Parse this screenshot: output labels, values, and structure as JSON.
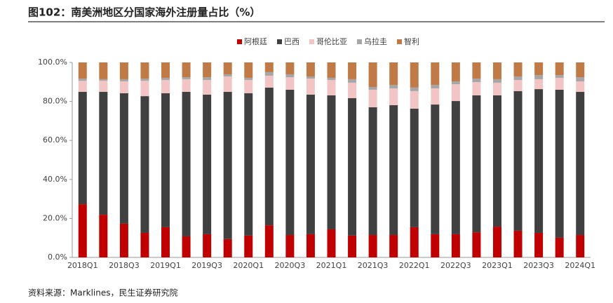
{
  "chart_data": {
    "type": "stacked_bar",
    "title": "图102：南美洲地区分国家海外注册量占比（%）",
    "source": "资料来源：Marklines，民生证券研究院",
    "categories": [
      "2018Q1",
      null,
      "2018Q3",
      null,
      "2019Q1",
      null,
      "2019Q3",
      null,
      "2020Q1",
      null,
      "2020Q3",
      null,
      "2021Q1",
      null,
      "2021Q3",
      null,
      "2022Q1",
      null,
      "2022Q3",
      null,
      "2023Q1",
      null,
      "2023Q3",
      null,
      "2024Q1"
    ],
    "series": [
      {
        "name": "阿根廷",
        "color": "#c00000",
        "values": [
          27.3,
          21.9,
          17.3,
          12.6,
          15.5,
          10.8,
          11.9,
          9.4,
          11.2,
          16.5,
          11.5,
          11.9,
          14.4,
          11.2,
          11.5,
          11.5,
          15.5,
          11.9,
          11.9,
          12.9,
          15.8,
          13.7,
          12.6,
          10.1,
          11.5
        ]
      },
      {
        "name": "巴西",
        "color": "#404040",
        "values": [
          57.6,
          63.0,
          66.9,
          70.1,
          68.7,
          74.1,
          71.6,
          75.5,
          73.0,
          70.6,
          74.5,
          71.6,
          68.7,
          70.5,
          65.5,
          66.6,
          60.8,
          66.5,
          68.3,
          70.2,
          67.3,
          71.6,
          73.7,
          75.9,
          73.4
        ]
      },
      {
        "name": "哥伦比亚",
        "color": "#f2c4c4",
        "values": [
          5.7,
          5.7,
          6.1,
          7.9,
          6.8,
          6.5,
          7.5,
          7.9,
          6.8,
          6.1,
          6.4,
          8.2,
          7.9,
          7.9,
          9.0,
          8.6,
          9.0,
          8.3,
          8.6,
          6.8,
          6.5,
          5.7,
          5.1,
          6.1,
          5.4
        ]
      },
      {
        "name": "乌拉圭",
        "color": "#a6a6a6",
        "values": [
          1.1,
          0.8,
          1.1,
          1.1,
          1.1,
          1.0,
          1.4,
          1.1,
          1.1,
          1.8,
          1.5,
          1.1,
          1.1,
          1.8,
          1.4,
          1.8,
          1.8,
          1.8,
          1.5,
          1.8,
          1.8,
          1.8,
          2.1,
          1.4,
          2.1
        ]
      },
      {
        "name": "智利",
        "color": "#c07a45",
        "values": [
          8.3,
          8.6,
          8.6,
          8.3,
          7.9,
          7.6,
          7.6,
          6.1,
          7.9,
          5.0,
          6.1,
          7.2,
          7.9,
          8.6,
          12.6,
          11.5,
          12.9,
          11.5,
          9.7,
          8.3,
          8.6,
          7.2,
          6.5,
          6.5,
          7.6
        ]
      }
    ],
    "ylim": [
      0,
      100
    ],
    "yticks": [
      {
        "value": 0,
        "label": "0.0%"
      },
      {
        "value": 20,
        "label": "20.0%"
      },
      {
        "value": 40,
        "label": "40.0%"
      },
      {
        "value": 60,
        "label": "60.0%"
      },
      {
        "value": 80,
        "label": "80.0%"
      },
      {
        "value": 100,
        "label": "100.0%"
      }
    ],
    "legend": "top"
  }
}
